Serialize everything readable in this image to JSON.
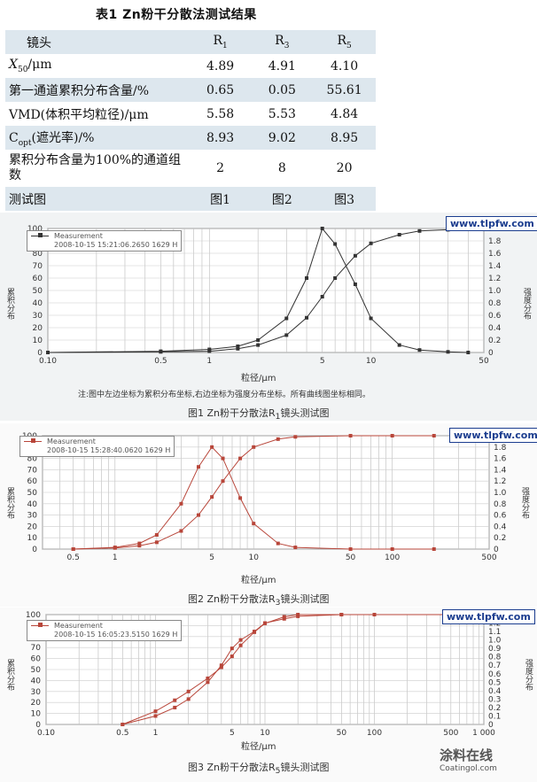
{
  "table": {
    "title": "表1   Zn粉干分散法测试结果",
    "header": {
      "label": "镜头",
      "c1": "R",
      "c1sub": "1",
      "c2": "R",
      "c2sub": "3",
      "c3": "R",
      "c3sub": "5"
    },
    "rows": [
      {
        "label": "X",
        "label_sub": "50",
        "label_tail": "/μm",
        "values": [
          "4.89",
          "4.91",
          "4.10"
        ]
      },
      {
        "label": "第一通道累积分布含量/%",
        "values": [
          "0.65",
          "0.05",
          "55.61"
        ]
      },
      {
        "label": "VMD(体积平均粒径)/μm",
        "values": [
          "5.58",
          "5.53",
          "4.84"
        ]
      },
      {
        "label": "C",
        "label_sub": "opt",
        "label_tail": "(遮光率)/%",
        "values": [
          "8.93",
          "9.02",
          "8.95"
        ]
      },
      {
        "label": "累积分布含量为100%的通道组数",
        "values": [
          "2",
          "8",
          "20"
        ]
      },
      {
        "label": "测试图",
        "values": [
          "图1",
          "图2",
          "图3"
        ]
      }
    ]
  },
  "watermark": "www.tlpfw.com",
  "figures": [
    {
      "caption": "图1   Zn粉干分散法R",
      "caption_sub": "1",
      "caption_tail": "镜头测试图",
      "legend_title": "Measurement",
      "legend_time": "2008-10-15 15:21:06.2650 1629 H",
      "note": "注:图中左边坐标为累积分布坐标,右边坐标为强度分布坐标。所有曲线图坐标相同。",
      "xlabel": "粒径/μm",
      "ylabel_left": "累积分布",
      "ylabel_right": "强度分布",
      "color": "#333333",
      "left_ticks": [
        "100",
        "90",
        "80",
        "70",
        "60",
        "50",
        "40",
        "30",
        "20",
        "10",
        "0"
      ],
      "right_ticks": [
        "2.0",
        "1.8",
        "1.6",
        "1.4",
        "1.2",
        "1.0",
        "0.8",
        "0.6",
        "0.4",
        "0.2",
        "0"
      ],
      "x_ticks": [
        {
          "v": 0.1,
          "t": "0.10"
        },
        {
          "v": 0.5,
          "t": "0.5"
        },
        {
          "v": 1,
          "t": "1"
        },
        {
          "v": 5,
          "t": "5"
        },
        {
          "v": 10,
          "t": "10"
        },
        {
          "v": 50,
          "t": "50"
        }
      ],
      "x_min": 0.1,
      "x_max": 50,
      "chart_data": {
        "type": "line",
        "series": [
          {
            "axis": "left",
            "x": [
              0.1,
              0.5,
              1,
              1.5,
              2,
              3,
              4,
              5,
              6,
              8,
              10,
              15,
              20,
              30,
              50
            ],
            "values": [
              0,
              0.5,
              1,
              3,
              6,
              14,
              28,
              45,
              60,
              78,
              88,
              95,
              98,
              99,
              100
            ]
          },
          {
            "axis": "right",
            "x": [
              0.1,
              0.5,
              1,
              1.5,
              2,
              3,
              4,
              5,
              6,
              8,
              10,
              15,
              20,
              30,
              40
            ],
            "values": [
              0,
              0.02,
              0.05,
              0.1,
              0.2,
              0.55,
              1.2,
              2.0,
              1.75,
              1.1,
              0.55,
              0.12,
              0.04,
              0.01,
              0
            ]
          }
        ],
        "xlabel": "粒径/μm",
        "ylim_left": [
          0,
          100
        ],
        "ylim_right": [
          0,
          2.0
        ],
        "xscale": "log"
      }
    },
    {
      "caption": "图2   Zn粉干分散法R",
      "caption_sub": "3",
      "caption_tail": "镜头测试图",
      "legend_title": "Measurement",
      "legend_time": "2008-10-15 15:28:40.0620 1629 H",
      "xlabel": "粒径/μm",
      "ylabel_left": "累积分布",
      "ylabel_right": "强度分布",
      "color": "#b8463a",
      "left_ticks": [
        "100",
        "90",
        "80",
        "70",
        "60",
        "50",
        "40",
        "30",
        "20",
        "10",
        "0"
      ],
      "right_ticks": [
        "2.0",
        "1.8",
        "1.6",
        "1.4",
        "1.2",
        "1.0",
        "0.8",
        "0.6",
        "0.4",
        "0.2",
        "0"
      ],
      "x_ticks": [
        {
          "v": 0.5,
          "t": "0.5"
        },
        {
          "v": 1,
          "t": "1"
        },
        {
          "v": 5,
          "t": "5"
        },
        {
          "v": 10,
          "t": "10"
        },
        {
          "v": 50,
          "t": "50"
        },
        {
          "v": 100,
          "t": "100"
        },
        {
          "v": 500,
          "t": "500"
        }
      ],
      "x_min": 0.3,
      "x_max": 500,
      "chart_data": {
        "type": "line",
        "series": [
          {
            "axis": "left",
            "x": [
              0.5,
              1,
              1.5,
              2,
              3,
              4,
              5,
              6,
              8,
              10,
              15,
              20,
              50,
              100,
              200
            ],
            "values": [
              0,
              1,
              3,
              6,
              16,
              30,
              46,
              60,
              80,
              90,
              97,
              99,
              100,
              100,
              100
            ]
          },
          {
            "axis": "right",
            "x": [
              0.5,
              1,
              1.5,
              2,
              3,
              4,
              5,
              6,
              8,
              10,
              15,
              20,
              50,
              100,
              200
            ],
            "values": [
              0,
              0.03,
              0.1,
              0.25,
              0.8,
              1.45,
              1.8,
              1.6,
              0.9,
              0.45,
              0.1,
              0.03,
              0,
              0,
              0
            ]
          }
        ],
        "xlabel": "粒径/μm",
        "ylim_left": [
          0,
          100
        ],
        "ylim_right": [
          0,
          2.0
        ],
        "xscale": "log"
      }
    },
    {
      "caption": "图3   Zn粉干分散法R",
      "caption_sub": "5",
      "caption_tail": "镜头测试图",
      "legend_title": "Measurement",
      "legend_time": "2008-10-15 16:05:23.5150 1629 H",
      "xlabel": "粒径/μm",
      "ylabel_left": "累积分布",
      "ylabel_right": "强度分布",
      "color": "#b8463a",
      "left_ticks": [
        "100",
        "90",
        "80",
        "70",
        "60",
        "50",
        "40",
        "30",
        "20",
        "10",
        "0"
      ],
      "right_ticks": [
        "1.3",
        "1.2",
        "1.1",
        "1.0",
        "0.9",
        "0.8",
        "0.7",
        "0.6",
        "0.5",
        "0.4",
        "0.3",
        "0.2",
        "0.1",
        "0"
      ],
      "x_ticks": [
        {
          "v": 0.1,
          "t": "0.10"
        },
        {
          "v": 0.5,
          "t": "0.5"
        },
        {
          "v": 1,
          "t": "1"
        },
        {
          "v": 5,
          "t": "5"
        },
        {
          "v": 10,
          "t": "10"
        },
        {
          "v": 50,
          "t": "50"
        },
        {
          "v": 100,
          "t": "100"
        },
        {
          "v": 500,
          "t": "500"
        },
        {
          "v": 1000,
          "t": "1 000"
        }
      ],
      "x_min": 0.1,
      "x_max": 1000,
      "chart_data": {
        "type": "line",
        "series": [
          {
            "axis": "left",
            "x": [
              0.5,
              1,
              1.5,
              2,
              3,
              4,
              5,
              6,
              8,
              10,
              15,
              20,
              50,
              100,
              500,
              1000
            ],
            "values": [
              0,
              12,
              22,
              30,
              42,
              52,
              62,
              72,
              84,
              92,
              98,
              100,
              100,
              100,
              100,
              100
            ]
          },
          {
            "axis": "right",
            "x": [
              0.5,
              1,
              1.5,
              2,
              3,
              4,
              5,
              6,
              8,
              10,
              15,
              20,
              50,
              100,
              500,
              1000
            ],
            "values": [
              0,
              0.1,
              0.2,
              0.3,
              0.5,
              0.7,
              0.9,
              1.0,
              1.1,
              1.2,
              1.25,
              1.28,
              1.3,
              1.3,
              1.3,
              1.3
            ]
          }
        ],
        "xlabel": "粒径/μm",
        "ylim_left": [
          0,
          100
        ],
        "ylim_right": [
          0,
          1.3
        ],
        "xscale": "log"
      }
    }
  ],
  "logo": {
    "t1": "涂料在线",
    "t2": "Coatingol.com"
  }
}
